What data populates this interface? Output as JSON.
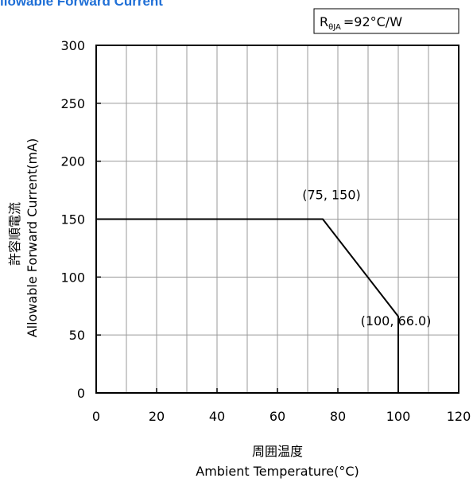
{
  "chart_data": {
    "type": "line",
    "title": "llowable Forward Current",
    "parameter_box": {
      "prefix": "R",
      "subscript": "θJA",
      "suffix": "=92°C/W"
    },
    "xlabel": [
      "周囲温度",
      "Ambient Temperature(°C)"
    ],
    "ylabel": [
      "許容順電流",
      "Allowable Forward Current(mA)"
    ],
    "xlim": [
      0,
      120
    ],
    "ylim": [
      0,
      300
    ],
    "xticks": [
      "0",
      "20",
      "40",
      "60",
      "80",
      "100",
      "120"
    ],
    "yticks": [
      "0",
      "50",
      "100",
      "150",
      "200",
      "250",
      "300"
    ],
    "grid": true,
    "series": [
      {
        "x": [
          0,
          75,
          100,
          100
        ],
        "y": [
          150,
          150,
          66.0,
          0
        ]
      }
    ],
    "annotations": [
      {
        "text": "(75, 150)",
        "x": 75,
        "y": 150
      },
      {
        "text": "(100, 66.0)",
        "x": 100,
        "y": 66.0
      }
    ],
    "colors": {
      "title": "#1f6fd6",
      "series": "#000000",
      "grid": "#9a9a9a",
      "axes": "#000000"
    }
  }
}
